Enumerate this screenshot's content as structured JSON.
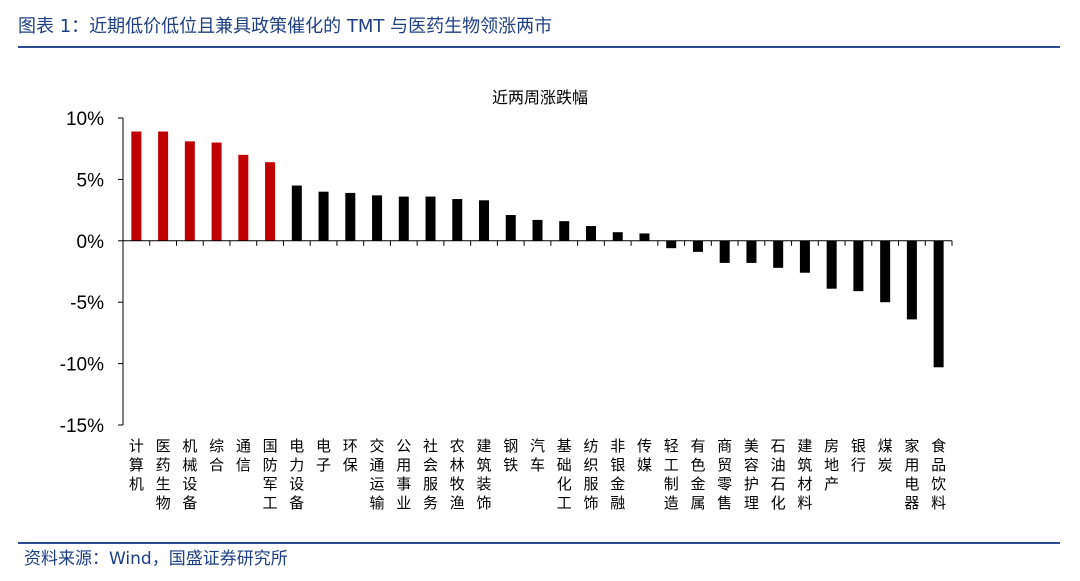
{
  "figure_title": "图表 1：近期低价低位且兼具政策催化的 TMT 与医药生物领涨两市",
  "source": "资料来源：Wind，国盛证券研究所",
  "colors": {
    "highlight": "#c00000",
    "normal": "#000000",
    "accent": "#1f3f84"
  },
  "chart_data": {
    "type": "bar",
    "title": "近两周涨跌幅",
    "xlabel": "",
    "ylabel": "",
    "ylim": [
      -15,
      10
    ],
    "yticks": [
      10,
      5,
      0,
      -5,
      -10,
      -15
    ],
    "ytick_labels": [
      "10%",
      "5%",
      "0%",
      "-5%",
      "-10%",
      "-15%"
    ],
    "grid": false,
    "legend": "none",
    "categories": [
      "计算机",
      "医药生物",
      "机械设备",
      "综合",
      "通信",
      "国防军工",
      "电力设备",
      "电子",
      "环保",
      "交通运输",
      "公用事业",
      "社会服务",
      "农林牧渔",
      "建筑装饰",
      "钢铁",
      "汽车",
      "基础化工",
      "纺织服饰",
      "非银金融",
      "传媒",
      "轻工制造",
      "有色金属",
      "商贸零售",
      "美容护理",
      "石油石化",
      "建筑材料",
      "房地产",
      "银行",
      "煤炭",
      "家用电器",
      "食品饮料"
    ],
    "values": [
      8.9,
      8.9,
      8.1,
      8.0,
      7.0,
      6.4,
      4.5,
      4.0,
      3.9,
      3.7,
      3.6,
      3.6,
      3.4,
      3.3,
      2.1,
      1.7,
      1.6,
      1.2,
      0.7,
      0.6,
      -0.6,
      -0.9,
      -1.8,
      -1.8,
      -2.2,
      -2.6,
      -3.9,
      -4.1,
      -5.0,
      -6.4,
      -10.3
    ],
    "highlight_count": 6
  }
}
